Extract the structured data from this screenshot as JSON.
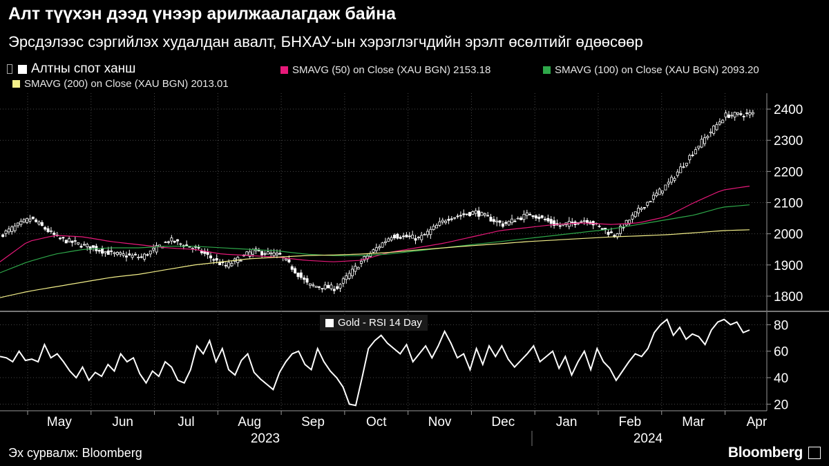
{
  "header": {
    "title": "Алт түүхэн дээд үнээр арилжаалагдаж байна",
    "subtitle": "Эрсдэлээс сэргийлэх худалдан авалт, БНХАУ-ын хэрэглэгчдийн эрэлт өсөлтийг өдөөсөөр"
  },
  "legend": {
    "main": "Алтны спот ханш",
    "sma50": "SMAVG (50)  on Close (XAU BGN) 2153.18",
    "sma100": "SMAVG (100)  on Close (XAU BGN) 2093.20",
    "sma200": "SMAVG (200)  on Close (XAU BGN) 2013.01",
    "rsi": "Gold - RSI 14 Day"
  },
  "footer": {
    "source": "Эх сурвалж: Bloomberg",
    "brand": "Bloomberg"
  },
  "colors": {
    "candle": "#ffffff",
    "sma50": "#e8197a",
    "sma100": "#2ea84a",
    "sma200": "#f4f08a",
    "grid": "#4a4a4a",
    "rsi": "#ffffff"
  },
  "chart_data": [
    {
      "type": "candlestick",
      "series": [
        {
          "name": "Алтны спот ханш",
          "dates": [
            "2023-04-17",
            "2023-05-01",
            "2023-05-15",
            "2023-06-01",
            "2023-06-15",
            "2023-07-01",
            "2023-07-17",
            "2023-08-01",
            "2023-08-15",
            "2023-09-01",
            "2023-09-15",
            "2023-10-02",
            "2023-10-06",
            "2023-10-16",
            "2023-11-01",
            "2023-11-15",
            "2023-12-01",
            "2023-12-04",
            "2023-12-15",
            "2024-01-02",
            "2024-01-15",
            "2024-02-01",
            "2024-02-14",
            "2024-03-01",
            "2024-03-15",
            "2024-04-01",
            "2024-04-12",
            "2024-04-19"
          ],
          "values": [
            2000,
            2050,
            1985,
            1960,
            1935,
            1925,
            1980,
            1950,
            1895,
            1945,
            1930,
            1835,
            1825,
            1920,
            1995,
            1985,
            2050,
            2070,
            2030,
            2065,
            2025,
            2045,
            1995,
            2085,
            2165,
            2280,
            2380,
            2385
          ]
        },
        {
          "name": "SMAVG (50)",
          "values": [
            1910,
            1975,
            1995,
            1990,
            1975,
            1965,
            1955,
            1950,
            1935,
            1930,
            1925,
            1915,
            1910,
            1915,
            1940,
            1955,
            1970,
            1990,
            2010,
            2020,
            2030,
            2035,
            2030,
            2035,
            2055,
            2100,
            2140,
            2153
          ]
        },
        {
          "name": "SMAVG (100)",
          "values": [
            1875,
            1910,
            1935,
            1950,
            1955,
            1955,
            1960,
            1960,
            1955,
            1950,
            1945,
            1935,
            1930,
            1930,
            1935,
            1945,
            1955,
            1965,
            1975,
            1985,
            1995,
            2005,
            2015,
            2030,
            2045,
            2060,
            2085,
            2093
          ]
        },
        {
          "name": "SMAVG (200)",
          "values": [
            1795,
            1815,
            1830,
            1845,
            1860,
            1870,
            1885,
            1900,
            1910,
            1920,
            1925,
            1930,
            1932,
            1935,
            1940,
            1948,
            1955,
            1962,
            1968,
            1975,
            1980,
            1985,
            1990,
            1993,
            1997,
            2003,
            2010,
            2013
          ]
        }
      ],
      "y_ticks": [
        1800,
        1900,
        2000,
        2100,
        2200,
        2300,
        2400
      ],
      "ylim": [
        1760,
        2440
      ]
    },
    {
      "type": "line",
      "series": [
        {
          "name": "Gold - RSI 14 Day",
          "values": [
            56,
            55,
            52,
            60,
            53,
            54,
            52,
            65,
            55,
            58,
            52,
            45,
            40,
            48,
            38,
            44,
            41,
            50,
            45,
            58,
            52,
            55,
            43,
            36,
            45,
            41,
            52,
            48,
            38,
            36,
            46,
            64,
            58,
            68,
            52,
            62,
            46,
            42,
            53,
            58,
            44,
            39,
            35,
            31,
            44,
            52,
            58,
            60,
            50,
            46,
            62,
            52,
            45,
            40,
            33,
            20,
            19,
            40,
            62,
            68,
            72,
            66,
            62,
            58,
            65,
            52,
            58,
            64,
            55,
            64,
            75,
            66,
            55,
            58,
            46,
            62,
            50,
            64,
            56,
            64,
            54,
            48,
            53,
            58,
            64,
            52,
            56,
            60,
            47,
            56,
            42,
            52,
            60,
            46,
            62,
            52,
            47,
            38,
            45,
            52,
            58,
            56,
            62,
            74,
            80,
            84,
            72,
            78,
            69,
            73,
            71,
            65,
            76,
            82,
            84,
            80,
            82,
            74,
            76
          ]
        }
      ],
      "y_ticks": [
        20,
        40,
        60,
        80
      ],
      "ylim": [
        15,
        88
      ]
    }
  ],
  "x_axis": {
    "months": [
      "May",
      "Jun",
      "Jul",
      "Aug",
      "Sep",
      "Oct",
      "Nov",
      "Dec",
      "Jan",
      "Feb",
      "Mar",
      "Apr"
    ],
    "years": [
      "2023",
      "2024"
    ]
  }
}
